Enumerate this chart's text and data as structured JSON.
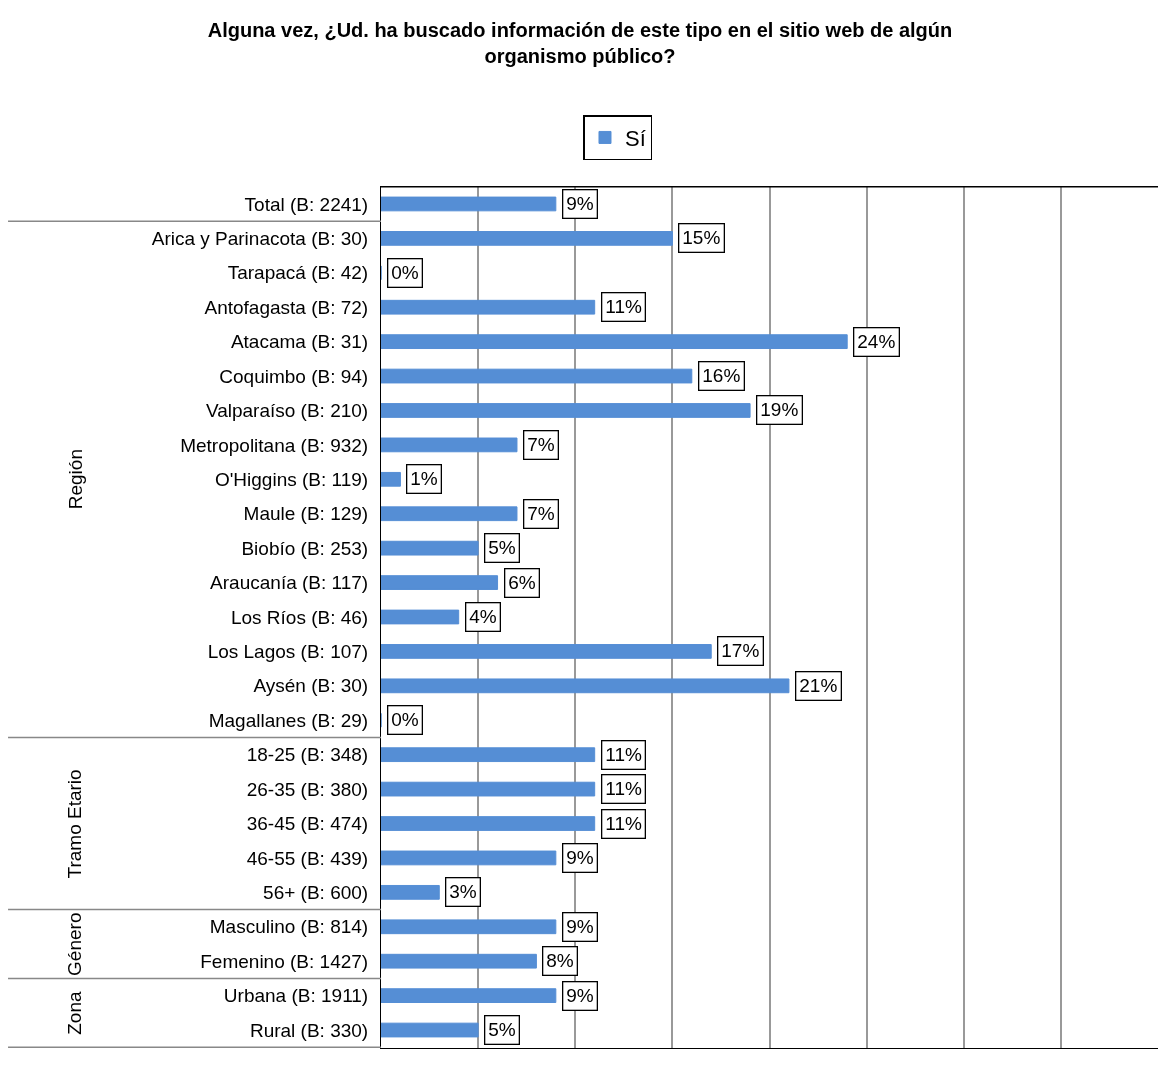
{
  "chart_data": {
    "type": "bar",
    "orientation": "horizontal",
    "title": "Alguna vez, ¿Ud. ha buscado información de este tipo en el sitio web de algún organismo público?",
    "categories": [
      "Total (B: 2241)",
      "Arica y Parinacota (B: 30)",
      "Tarapacá (B: 42)",
      "Antofagasta (B: 72)",
      "Atacama (B: 31)",
      "Coquimbo (B: 94)",
      "Valparaíso (B: 210)",
      "Metropolitana (B: 932)",
      "O'Higgins (B: 119)",
      "Maule (B: 129)",
      "Biobío (B: 253)",
      "Araucanía (B: 117)",
      "Los Ríos (B: 46)",
      "Los Lagos (B: 107)",
      "Aysén (B: 30)",
      "Magallanes (B: 29)",
      "18-25 (B: 348)",
      "26-35 (B: 380)",
      "36-45 (B: 474)",
      "46-55 (B: 439)",
      "56+ (B: 600)",
      "Masculino (B: 814)",
      "Femenino (B: 1427)",
      "Urbana (B: 1911)",
      "Rural (B: 330)"
    ],
    "series": [
      {
        "name": "Sí",
        "color": "#558ed5",
        "values": [
          9,
          15,
          0,
          11,
          24,
          16,
          19,
          7,
          1,
          7,
          5,
          6,
          4,
          17,
          21,
          0,
          11,
          11,
          11,
          9,
          3,
          9,
          8,
          9,
          5
        ],
        "value_labels": [
          "9%",
          "15%",
          "0%",
          "11%",
          "24%",
          "16%",
          "19%",
          "7%",
          "1%",
          "7%",
          "5%",
          "6%",
          "4%",
          "17%",
          "21%",
          "0%",
          "11%",
          "11%",
          "11%",
          "9%",
          "3%",
          "9%",
          "8%",
          "9%",
          "5%"
        ]
      }
    ],
    "annotations": [
      "Región",
      "Tramo Etario",
      "Género",
      "Zona"
    ],
    "xlim": [
      0,
      40
    ],
    "xticks": [
      {
        "value": 0,
        "label": null
      },
      {
        "value": 5,
        "label": null
      },
      {
        "value": 10,
        "label": null
      },
      {
        "value": 15,
        "label": null
      },
      {
        "value": 20,
        "label": null
      },
      {
        "value": 25,
        "label": null
      },
      {
        "value": 30,
        "label": null
      },
      {
        "value": 35,
        "label": null
      },
      {
        "value": 40,
        "label": null
      }
    ],
    "tick_labels": "y",
    "grid": "x",
    "legend": "top"
  }
}
